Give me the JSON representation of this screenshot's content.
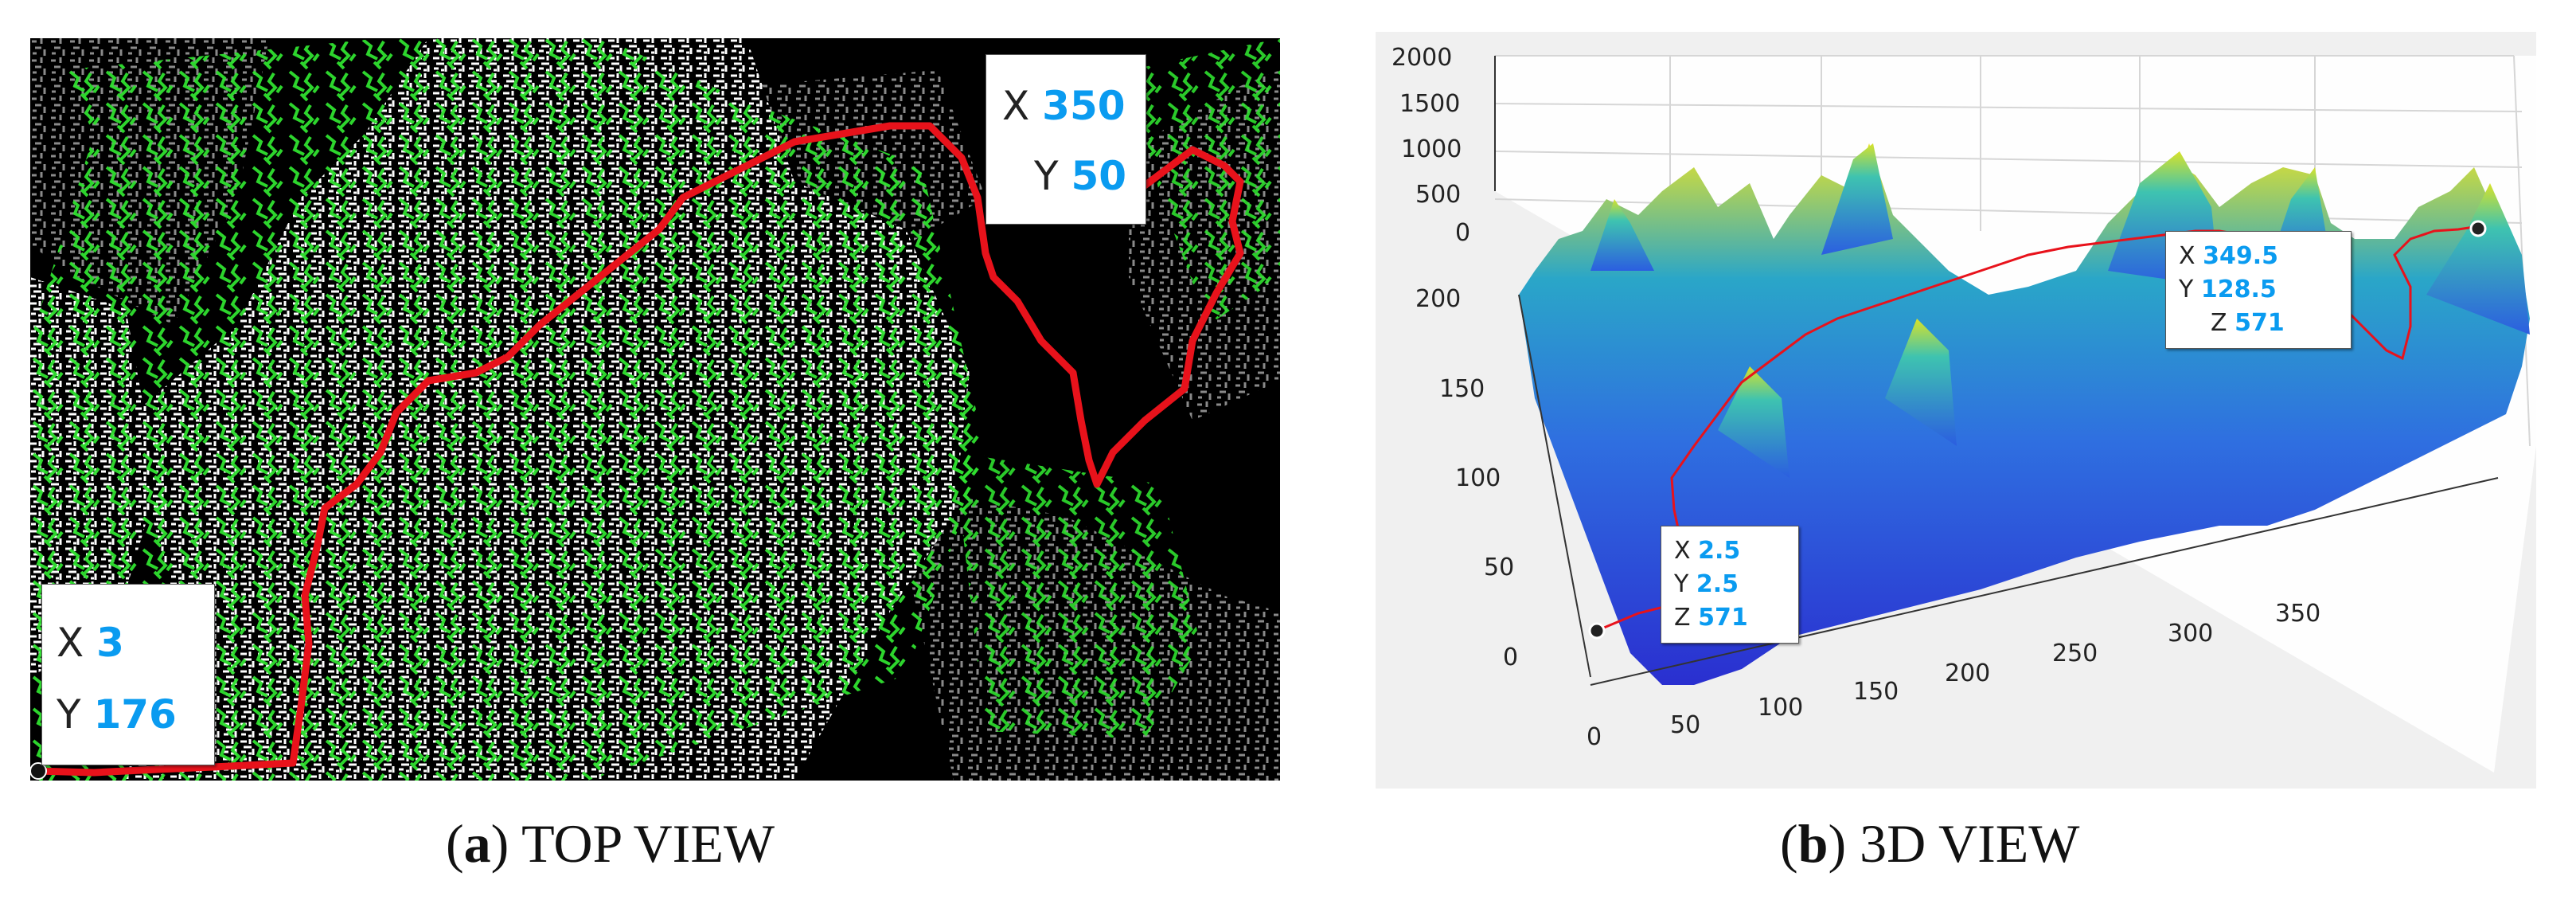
{
  "panels": [
    {
      "caption_letter": "a",
      "caption_text": "TOP VIEW",
      "start_tip": {
        "x_label": "X",
        "x_value": "3",
        "y_label": "Y",
        "y_value": "176"
      },
      "end_tip": {
        "x_label": "X",
        "x_value": "350",
        "y_label": "Y",
        "y_value": "50"
      }
    },
    {
      "caption_letter": "b",
      "caption_text": "3D VIEW",
      "end_tip": {
        "x_label": "X",
        "x_value": "349.5",
        "y_label": "Y",
        "y_value": "128.5",
        "z_label": "Z",
        "z_value": "571"
      },
      "start_tip": {
        "x_label": "X",
        "x_value": "2.5",
        "y_label": "Y",
        "y_value": "2.5",
        "z_label": "Z",
        "z_value": "571"
      },
      "z_ticks": [
        "2000",
        "1500",
        "1000",
        "500",
        "0"
      ],
      "y_ticks": [
        "200",
        "150",
        "100",
        "50",
        "0"
      ],
      "x_ticks": [
        "0",
        "50",
        "100",
        "150",
        "200",
        "250",
        "300",
        "350"
      ]
    }
  ],
  "colors": {
    "path": "#e8121b",
    "tree": "#2fe02f",
    "obstacle_white": "#ffffff",
    "obstacle_gray": "#8a8a8a",
    "surface_low": "#2a2fd0",
    "surface_mid": "#2aa6c8",
    "surface_high": "#e6e32a"
  }
}
